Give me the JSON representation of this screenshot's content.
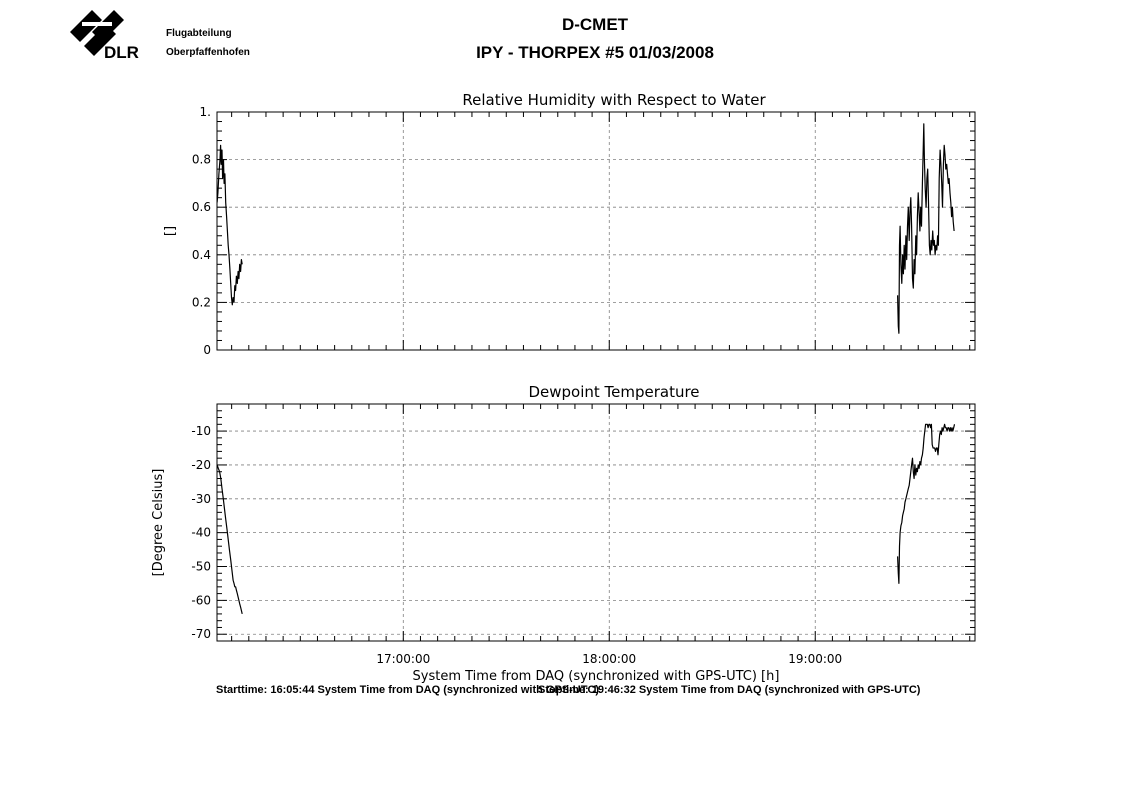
{
  "header": {
    "org_short": "DLR",
    "org_line1": "Flugabteilung",
    "org_line2": "Oberpfaffenhofen",
    "title": "D-CMET",
    "subtitle": "IPY - THORPEX #5   01/03/2008"
  },
  "footer": {
    "left_text": "Starttime: 16:05:44 System Time from DAQ (synchronized with GPS-UTC)",
    "right_text": "Stoptime: 19:46:32 System Time from DAQ (synchronized with GPS-UTC)"
  },
  "colors": {
    "line": "#000000",
    "grid": "#808080",
    "background": "#ffffff"
  },
  "chart_data": [
    {
      "type": "line",
      "title": "Relative Humidity with Respect to Water",
      "xlabel": "",
      "ylabel": "[]",
      "xlim": [
        16.0956,
        19.7756
      ],
      "ylim": [
        0,
        1
      ],
      "x_ticks": [
        17,
        18,
        19
      ],
      "x_tick_labels": [
        "",
        "",
        ""
      ],
      "y_ticks": [
        0,
        0.2,
        0.4,
        0.6,
        0.8,
        1
      ],
      "y_tick_labels": [
        "0",
        "0.2",
        "0.4",
        "0.6",
        "0.8",
        "1."
      ],
      "grid": true,
      "series": [
        {
          "segments": [
            [
              [
                16.096,
                0.62
              ],
              [
                16.1,
                0.66
              ],
              [
                16.105,
                0.74
              ],
              [
                16.11,
                0.8
              ],
              [
                16.113,
                0.86
              ],
              [
                16.116,
                0.78
              ],
              [
                16.12,
                0.84
              ],
              [
                16.123,
                0.72
              ],
              [
                16.127,
                0.8
              ],
              [
                16.13,
                0.7
              ],
              [
                16.134,
                0.74
              ],
              [
                16.138,
                0.62
              ],
              [
                16.142,
                0.56
              ],
              [
                16.146,
                0.5
              ],
              [
                16.15,
                0.44
              ],
              [
                16.154,
                0.4
              ],
              [
                16.158,
                0.34
              ],
              [
                16.162,
                0.28
              ],
              [
                16.166,
                0.22
              ],
              [
                16.17,
                0.19
              ],
              [
                16.174,
                0.22
              ],
              [
                16.178,
                0.2
              ],
              [
                16.182,
                0.27
              ],
              [
                16.186,
                0.25
              ],
              [
                16.19,
                0.31
              ],
              [
                16.194,
                0.28
              ],
              [
                16.198,
                0.33
              ],
              [
                16.202,
                0.3
              ],
              [
                16.206,
                0.36
              ],
              [
                16.21,
                0.33
              ],
              [
                16.214,
                0.38
              ],
              [
                16.218,
                0.36
              ]
            ],
            [
              [
                19.4,
                0.23
              ],
              [
                19.403,
                0.1
              ],
              [
                19.406,
                0.07
              ],
              [
                19.409,
                0.44
              ],
              [
                19.412,
                0.52
              ],
              [
                19.416,
                0.36
              ],
              [
                19.42,
                0.28
              ],
              [
                19.424,
                0.4
              ],
              [
                19.428,
                0.32
              ],
              [
                19.432,
                0.44
              ],
              [
                19.436,
                0.34
              ],
              [
                19.44,
                0.48
              ],
              [
                19.444,
                0.38
              ],
              [
                19.448,
                0.52
              ],
              [
                19.452,
                0.6
              ],
              [
                19.456,
                0.46
              ],
              [
                19.46,
                0.58
              ],
              [
                19.464,
                0.64
              ],
              [
                19.468,
                0.52
              ],
              [
                19.472,
                0.3
              ],
              [
                19.476,
                0.26
              ],
              [
                19.48,
                0.38
              ],
              [
                19.484,
                0.32
              ],
              [
                19.488,
                0.48
              ],
              [
                19.492,
                0.4
              ],
              [
                19.496,
                0.56
              ],
              [
                19.5,
                0.66
              ],
              [
                19.504,
                0.58
              ],
              [
                19.508,
                0.5
              ],
              [
                19.512,
                0.6
              ],
              [
                19.516,
                0.52
              ],
              [
                19.52,
                0.7
              ],
              [
                19.524,
                0.84
              ],
              [
                19.527,
                0.95
              ],
              [
                19.53,
                0.8
              ],
              [
                19.534,
                0.68
              ],
              [
                19.538,
                0.6
              ],
              [
                19.542,
                0.72
              ],
              [
                19.546,
                0.76
              ],
              [
                19.55,
                0.62
              ],
              [
                19.554,
                0.44
              ],
              [
                19.558,
                0.4
              ],
              [
                19.562,
                0.46
              ],
              [
                19.566,
                0.42
              ],
              [
                19.57,
                0.5
              ],
              [
                19.574,
                0.44
              ],
              [
                19.578,
                0.46
              ],
              [
                19.582,
                0.4
              ],
              [
                19.586,
                0.44
              ],
              [
                19.59,
                0.42
              ],
              [
                19.594,
                0.48
              ],
              [
                19.598,
                0.44
              ],
              [
                19.602,
                0.72
              ],
              [
                19.606,
                0.84
              ],
              [
                19.61,
                0.78
              ],
              [
                19.614,
                0.7
              ],
              [
                19.618,
                0.6
              ],
              [
                19.622,
                0.78
              ],
              [
                19.626,
                0.86
              ],
              [
                19.63,
                0.82
              ],
              [
                19.634,
                0.76
              ],
              [
                19.638,
                0.78
              ],
              [
                19.642,
                0.74
              ],
              [
                19.646,
                0.7
              ],
              [
                19.65,
                0.72
              ],
              [
                19.654,
                0.66
              ],
              [
                19.658,
                0.62
              ],
              [
                19.662,
                0.56
              ],
              [
                19.666,
                0.6
              ],
              [
                19.67,
                0.54
              ],
              [
                19.674,
                0.5
              ]
            ]
          ]
        }
      ]
    },
    {
      "type": "line",
      "title": "Dewpoint Temperature",
      "xlabel": "System Time from DAQ (synchronized with GPS-UTC) [h]",
      "ylabel": "[Degree Celsius]",
      "xlim": [
        16.0956,
        19.7756
      ],
      "ylim": [
        -72,
        -2
      ],
      "x_ticks": [
        17,
        18,
        19
      ],
      "x_tick_labels": [
        "17:00:00",
        "18:00:00",
        "19:00:00"
      ],
      "y_ticks": [
        -70,
        -60,
        -50,
        -40,
        -30,
        -20,
        -10
      ],
      "y_tick_labels": [
        "-70",
        "-60",
        "-50",
        "-40",
        "-30",
        "-20",
        "-10"
      ],
      "grid": true,
      "series": [
        {
          "segments": [
            [
              [
                16.096,
                -20
              ],
              [
                16.102,
                -21
              ],
              [
                16.108,
                -22
              ],
              [
                16.114,
                -24
              ],
              [
                16.12,
                -27
              ],
              [
                16.126,
                -30
              ],
              [
                16.132,
                -33
              ],
              [
                16.138,
                -36
              ],
              [
                16.144,
                -39
              ],
              [
                16.15,
                -42
              ],
              [
                16.156,
                -45
              ],
              [
                16.162,
                -48
              ],
              [
                16.168,
                -51
              ],
              [
                16.174,
                -54
              ],
              [
                16.178,
                -55
              ],
              [
                16.182,
                -56
              ],
              [
                16.186,
                -56
              ],
              [
                16.19,
                -57
              ],
              [
                16.194,
                -58
              ],
              [
                16.198,
                -59
              ],
              [
                16.202,
                -60
              ],
              [
                16.206,
                -61
              ],
              [
                16.21,
                -62
              ],
              [
                16.214,
                -63
              ],
              [
                16.218,
                -64
              ]
            ],
            [
              [
                19.4,
                -47
              ],
              [
                19.403,
                -52
              ],
              [
                19.406,
                -55
              ],
              [
                19.409,
                -44
              ],
              [
                19.412,
                -40
              ],
              [
                19.416,
                -38
              ],
              [
                19.42,
                -37
              ],
              [
                19.424,
                -35
              ],
              [
                19.428,
                -34
              ],
              [
                19.432,
                -33
              ],
              [
                19.436,
                -31
              ],
              [
                19.44,
                -30
              ],
              [
                19.444,
                -29
              ],
              [
                19.448,
                -28
              ],
              [
                19.452,
                -27
              ],
              [
                19.456,
                -26
              ],
              [
                19.46,
                -24
              ],
              [
                19.464,
                -22
              ],
              [
                19.468,
                -20
              ],
              [
                19.472,
                -18
              ],
              [
                19.476,
                -22
              ],
              [
                19.48,
                -24
              ],
              [
                19.484,
                -20
              ],
              [
                19.488,
                -23
              ],
              [
                19.492,
                -21
              ],
              [
                19.496,
                -22
              ],
              [
                19.5,
                -20
              ],
              [
                19.504,
                -21
              ],
              [
                19.508,
                -19
              ],
              [
                19.512,
                -20
              ],
              [
                19.516,
                -18
              ],
              [
                19.52,
                -17
              ],
              [
                19.524,
                -15
              ],
              [
                19.528,
                -12
              ],
              [
                19.532,
                -10
              ],
              [
                19.536,
                -8
              ],
              [
                19.54,
                -8
              ],
              [
                19.544,
                -8
              ],
              [
                19.548,
                -9
              ],
              [
                19.552,
                -8
              ],
              [
                19.556,
                -8
              ],
              [
                19.56,
                -9
              ],
              [
                19.564,
                -8
              ],
              [
                19.568,
                -14
              ],
              [
                19.572,
                -15
              ],
              [
                19.576,
                -15
              ],
              [
                19.58,
                -15
              ],
              [
                19.584,
                -16
              ],
              [
                19.588,
                -15
              ],
              [
                19.592,
                -15
              ],
              [
                19.596,
                -17
              ],
              [
                19.6,
                -14
              ],
              [
                19.604,
                -11
              ],
              [
                19.608,
                -10
              ],
              [
                19.612,
                -11
              ],
              [
                19.616,
                -9
              ],
              [
                19.62,
                -10
              ],
              [
                19.624,
                -9
              ],
              [
                19.628,
                -8
              ],
              [
                19.632,
                -9
              ],
              [
                19.636,
                -9
              ],
              [
                19.64,
                -10
              ],
              [
                19.644,
                -9
              ],
              [
                19.648,
                -9
              ],
              [
                19.652,
                -10
              ],
              [
                19.656,
                -9
              ],
              [
                19.66,
                -10
              ],
              [
                19.664,
                -9
              ],
              [
                19.668,
                -10
              ],
              [
                19.672,
                -9
              ],
              [
                19.676,
                -8
              ]
            ]
          ]
        }
      ]
    }
  ]
}
